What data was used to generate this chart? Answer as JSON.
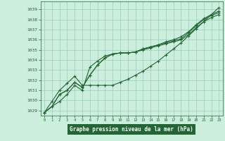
{
  "bg_color": "#cceedd",
  "grid_color": "#99ccbb",
  "line_color": "#226633",
  "marker_color": "#226633",
  "xlabel": "Graphe pression niveau de la mer (hPa)",
  "xlabel_bg": "#226633",
  "xlabel_fg": "#ffffff",
  "ylabel_ticks": [
    1029,
    1030,
    1031,
    1032,
    1033,
    1034,
    1035,
    1036,
    1037,
    1038,
    1039
  ],
  "xlim": [
    -0.5,
    23.5
  ],
  "ylim": [
    1028.5,
    1039.8
  ],
  "xticks": [
    0,
    1,
    2,
    3,
    4,
    5,
    6,
    7,
    8,
    9,
    10,
    11,
    12,
    13,
    14,
    15,
    16,
    17,
    18,
    19,
    20,
    21,
    22,
    23
  ],
  "series": [
    [
      1028.8,
      1029.4,
      1029.9,
      1030.6,
      1031.5,
      1031.0,
      1033.3,
      1033.9,
      1034.4,
      1034.6,
      1034.7,
      1034.7,
      1034.8,
      1035.0,
      1035.2,
      1035.4,
      1035.6,
      1035.8,
      1036.0,
      1036.5,
      1037.2,
      1037.8,
      1038.2,
      1038.5
    ],
    [
      1028.8,
      1029.4,
      1030.6,
      1031.0,
      1031.8,
      1031.3,
      1032.5,
      1033.5,
      1034.2,
      1034.6,
      1034.7,
      1034.7,
      1034.8,
      1035.1,
      1035.3,
      1035.5,
      1035.7,
      1035.9,
      1036.1,
      1036.7,
      1037.4,
      1038.0,
      1038.4,
      1038.7
    ],
    [
      1028.8,
      1029.4,
      1030.6,
      1031.0,
      1031.8,
      1031.3,
      1032.5,
      1033.5,
      1034.2,
      1034.6,
      1034.7,
      1034.7,
      1034.8,
      1035.1,
      1035.3,
      1035.5,
      1035.8,
      1036.0,
      1036.3,
      1036.8,
      1037.5,
      1038.1,
      1038.5,
      1038.85
    ],
    [
      1028.8,
      1029.9,
      1031.0,
      1031.7,
      1032.4,
      1031.5,
      1031.5,
      1031.5,
      1031.5,
      1031.5,
      1031.8,
      1032.1,
      1032.5,
      1032.9,
      1033.4,
      1033.9,
      1034.5,
      1035.1,
      1035.7,
      1036.4,
      1037.1,
      1037.8,
      1038.5,
      1039.2
    ]
  ]
}
